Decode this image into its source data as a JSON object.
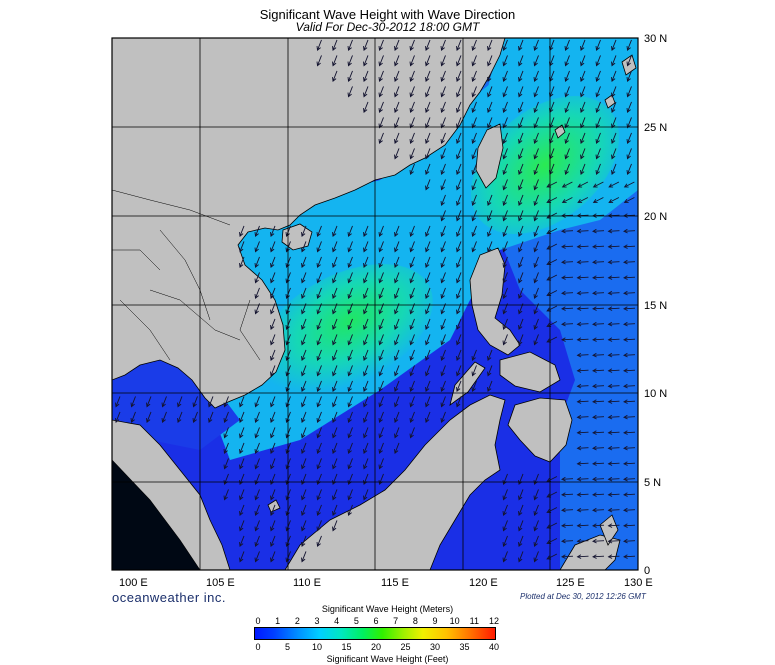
{
  "title": "Significant Wave Height with Wave Direction",
  "subtitle": "Valid For Dec-30-2012 18:00 GMT",
  "map": {
    "lon_labels": [
      "100 E",
      "105 E",
      "110 E",
      "115 E",
      "120 E",
      "125 E",
      "130 E"
    ],
    "lat_labels": [
      "30 N",
      "25 N",
      "20 N",
      "15 N",
      "10 N",
      "5 N",
      "0"
    ],
    "colors": {
      "land": "#c0c0c0",
      "deep_blue": "#1a2fe6",
      "mid_blue": "#1a6cf0",
      "cyan": "#14b4f0",
      "teal": "#16d8b4",
      "green": "#20e664",
      "arrow": "#1a1a3a"
    }
  },
  "brand": "oceanweather inc.",
  "plotted": "Plotted at Dec 30, 2012 12:26 GMT",
  "legend": {
    "meters_title": "Significant Wave Height (Meters)",
    "meters_ticks": [
      "0",
      "1",
      "2",
      "3",
      "4",
      "5",
      "6",
      "7",
      "8",
      "9",
      "10",
      "11",
      "12"
    ],
    "feet_title": "Significant Wave Height (Feet)",
    "feet_ticks": [
      "0",
      "5",
      "10",
      "15",
      "20",
      "25",
      "30",
      "35",
      "40"
    ]
  }
}
